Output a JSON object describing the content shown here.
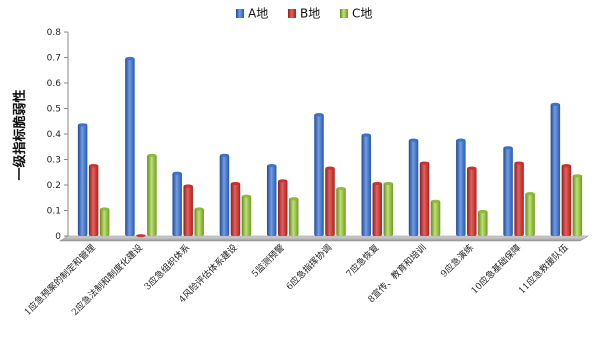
{
  "chart_data": {
    "type": "bar",
    "title": "",
    "xlabel": "",
    "ylabel": "一级指标脆弱性",
    "ylim": [
      0,
      0.8
    ],
    "yticks": [
      0,
      0.1,
      0.2,
      0.3,
      0.4,
      0.5,
      0.6,
      0.7,
      0.8
    ],
    "grid": false,
    "legend_position": "top",
    "categories": [
      "1应急预案的制定和管理",
      "2应急法制和制度化建设",
      "3应急组织体系",
      "4风险评估体系建设",
      "5监测预警",
      "6应急指挥协调",
      "7应急恢复",
      "8宣传、教育和培训",
      "9应急演练",
      "10应急基础保障",
      "11应急救援队伍"
    ],
    "series": [
      {
        "name": "A地",
        "color": "#3a6fc4",
        "values": [
          0.44,
          0.7,
          0.25,
          0.32,
          0.28,
          0.48,
          0.4,
          0.38,
          0.38,
          0.35,
          0.52
        ]
      },
      {
        "name": "B地",
        "color": "#c9302c",
        "values": [
          0.28,
          0.005,
          0.2,
          0.21,
          0.22,
          0.27,
          0.21,
          0.29,
          0.27,
          0.29,
          0.28
        ]
      },
      {
        "name": "C地",
        "color": "#8ab83a",
        "values": [
          0.11,
          0.32,
          0.11,
          0.16,
          0.15,
          0.19,
          0.21,
          0.14,
          0.1,
          0.17,
          0.24
        ]
      }
    ]
  }
}
